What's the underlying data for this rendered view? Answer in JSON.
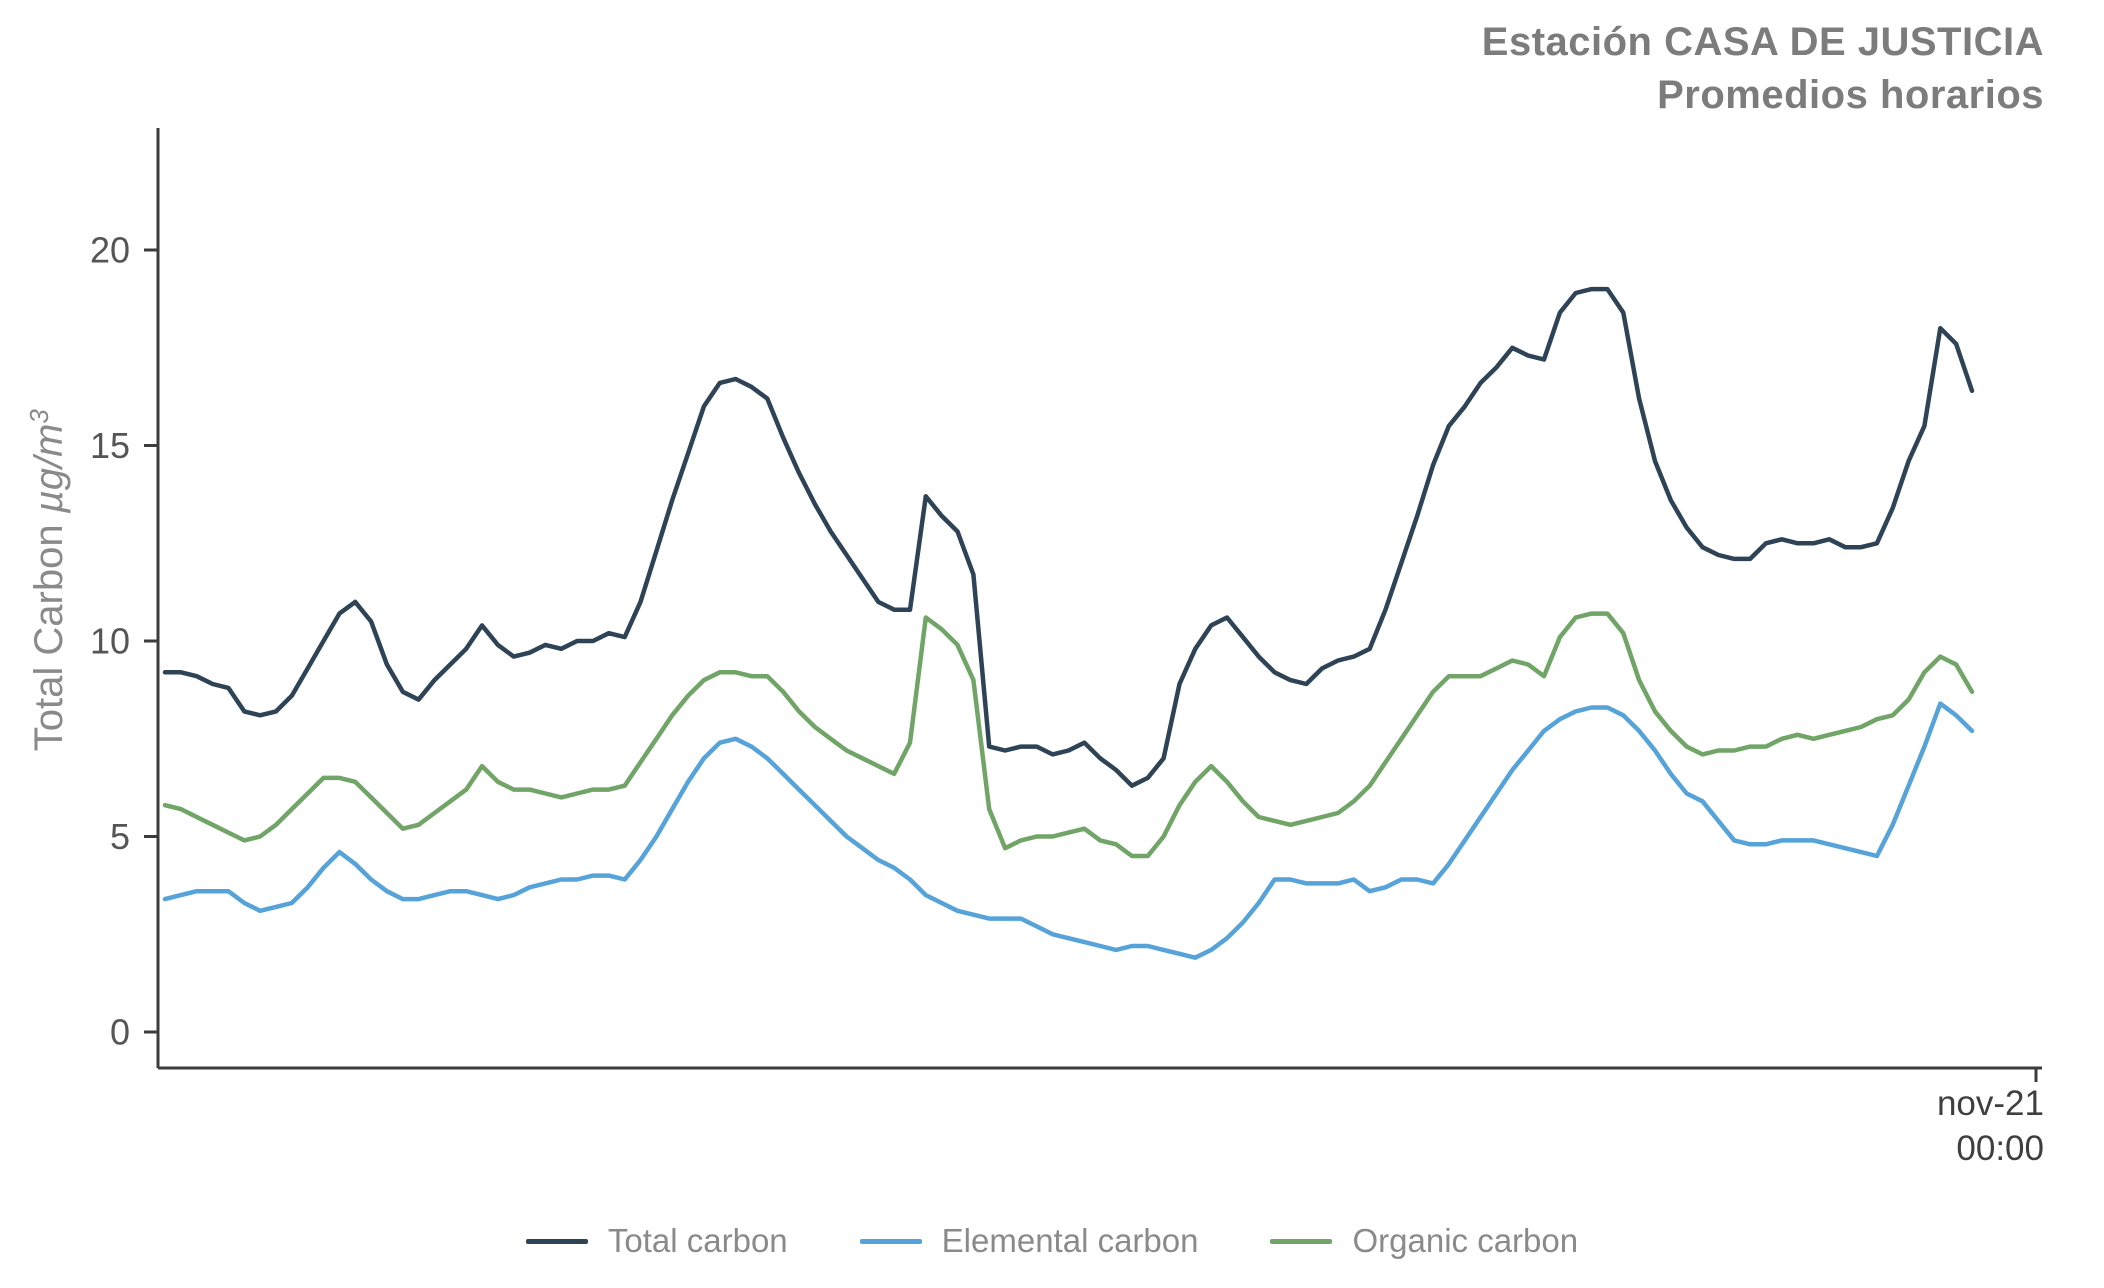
{
  "title": {
    "line1": "Estación CASA DE JUSTICIA",
    "line2": "Promedios horarios"
  },
  "chart_data": {
    "type": "line",
    "title": "Estación CASA DE JUSTICIA Promedios horarios",
    "ylabel_text": "Total Carbon ",
    "ylabel_units": "µg/m",
    "ylabel_units_exp": "3",
    "ylim": [
      0,
      23
    ],
    "yticks": [
      0,
      5,
      10,
      15,
      20
    ],
    "grid": false,
    "legend_position": "bottom-center",
    "x_tick": {
      "line1": "nov-21",
      "line2": "00:00"
    },
    "series": [
      {
        "name": "Total carbon",
        "color": "#2e4356",
        "values": [
          9.2,
          9.2,
          9.1,
          8.9,
          8.8,
          8.2,
          8.1,
          8.2,
          8.6,
          9.3,
          10.0,
          10.7,
          11.0,
          10.5,
          9.4,
          8.7,
          8.5,
          9.0,
          9.4,
          9.8,
          10.4,
          9.9,
          9.6,
          9.7,
          9.9,
          9.8,
          10.0,
          10.0,
          10.2,
          10.1,
          11.0,
          12.3,
          13.6,
          14.8,
          16.0,
          16.6,
          16.7,
          16.5,
          16.2,
          15.2,
          14.3,
          13.5,
          12.8,
          12.2,
          11.6,
          11.0,
          10.8,
          10.8,
          13.7,
          13.2,
          12.8,
          11.7,
          7.3,
          7.2,
          7.3,
          7.3,
          7.1,
          7.2,
          7.4,
          7.0,
          6.7,
          6.3,
          6.5,
          7.0,
          8.9,
          9.8,
          10.4,
          10.6,
          10.1,
          9.6,
          9.2,
          9.0,
          8.9,
          9.3,
          9.5,
          9.6,
          9.8,
          10.8,
          12.0,
          13.2,
          14.5,
          15.5,
          16.0,
          16.6,
          17.0,
          17.5,
          17.3,
          17.2,
          18.4,
          18.9,
          19.0,
          19.0,
          18.4,
          16.2,
          14.6,
          13.6,
          12.9,
          12.4,
          12.2,
          12.1,
          12.1,
          12.5,
          12.6,
          12.5,
          12.5,
          12.6,
          12.4,
          12.4,
          12.5,
          13.4,
          14.6,
          15.5,
          18.0,
          17.6,
          16.4
        ]
      },
      {
        "name": "Elemental carbon",
        "color": "#56a3d9",
        "values": [
          3.4,
          3.5,
          3.6,
          3.6,
          3.6,
          3.3,
          3.1,
          3.2,
          3.3,
          3.7,
          4.2,
          4.6,
          4.3,
          3.9,
          3.6,
          3.4,
          3.4,
          3.5,
          3.6,
          3.6,
          3.5,
          3.4,
          3.5,
          3.7,
          3.8,
          3.9,
          3.9,
          4.0,
          4.0,
          3.9,
          4.4,
          5.0,
          5.7,
          6.4,
          7.0,
          7.4,
          7.5,
          7.3,
          7.0,
          6.6,
          6.2,
          5.8,
          5.4,
          5.0,
          4.7,
          4.4,
          4.2,
          3.9,
          3.5,
          3.3,
          3.1,
          3.0,
          2.9,
          2.9,
          2.9,
          2.7,
          2.5,
          2.4,
          2.3,
          2.2,
          2.1,
          2.2,
          2.2,
          2.1,
          2.0,
          1.9,
          2.1,
          2.4,
          2.8,
          3.3,
          3.9,
          3.9,
          3.8,
          3.8,
          3.8,
          3.9,
          3.6,
          3.7,
          3.9,
          3.9,
          3.8,
          4.3,
          4.9,
          5.5,
          6.1,
          6.7,
          7.2,
          7.7,
          8.0,
          8.2,
          8.3,
          8.3,
          8.1,
          7.7,
          7.2,
          6.6,
          6.1,
          5.9,
          5.4,
          4.9,
          4.8,
          4.8,
          4.9,
          4.9,
          4.9,
          4.8,
          4.7,
          4.6,
          4.5,
          5.3,
          6.3,
          7.3,
          8.4,
          8.1,
          7.7
        ]
      },
      {
        "name": "Organic carbon",
        "color": "#70a567",
        "values": [
          5.8,
          5.7,
          5.5,
          5.3,
          5.1,
          4.9,
          5.0,
          5.3,
          5.7,
          6.1,
          6.5,
          6.5,
          6.4,
          6.0,
          5.6,
          5.2,
          5.3,
          5.6,
          5.9,
          6.2,
          6.8,
          6.4,
          6.2,
          6.2,
          6.1,
          6.0,
          6.1,
          6.2,
          6.2,
          6.3,
          6.9,
          7.5,
          8.1,
          8.6,
          9.0,
          9.2,
          9.2,
          9.1,
          9.1,
          8.7,
          8.2,
          7.8,
          7.5,
          7.2,
          7.0,
          6.8,
          6.6,
          7.4,
          10.6,
          10.3,
          9.9,
          9.0,
          5.7,
          4.7,
          4.9,
          5.0,
          5.0,
          5.1,
          5.2,
          4.9,
          4.8,
          4.5,
          4.5,
          5.0,
          5.8,
          6.4,
          6.8,
          6.4,
          5.9,
          5.5,
          5.4,
          5.3,
          5.4,
          5.5,
          5.6,
          5.9,
          6.3,
          6.9,
          7.5,
          8.1,
          8.7,
          9.1,
          9.1,
          9.1,
          9.3,
          9.5,
          9.4,
          9.1,
          10.1,
          10.6,
          10.7,
          10.7,
          10.2,
          9.0,
          8.2,
          7.7,
          7.3,
          7.1,
          7.2,
          7.2,
          7.3,
          7.3,
          7.5,
          7.6,
          7.5,
          7.6,
          7.7,
          7.8,
          8.0,
          8.1,
          8.5,
          9.2,
          9.6,
          9.4,
          8.7
        ]
      }
    ]
  }
}
